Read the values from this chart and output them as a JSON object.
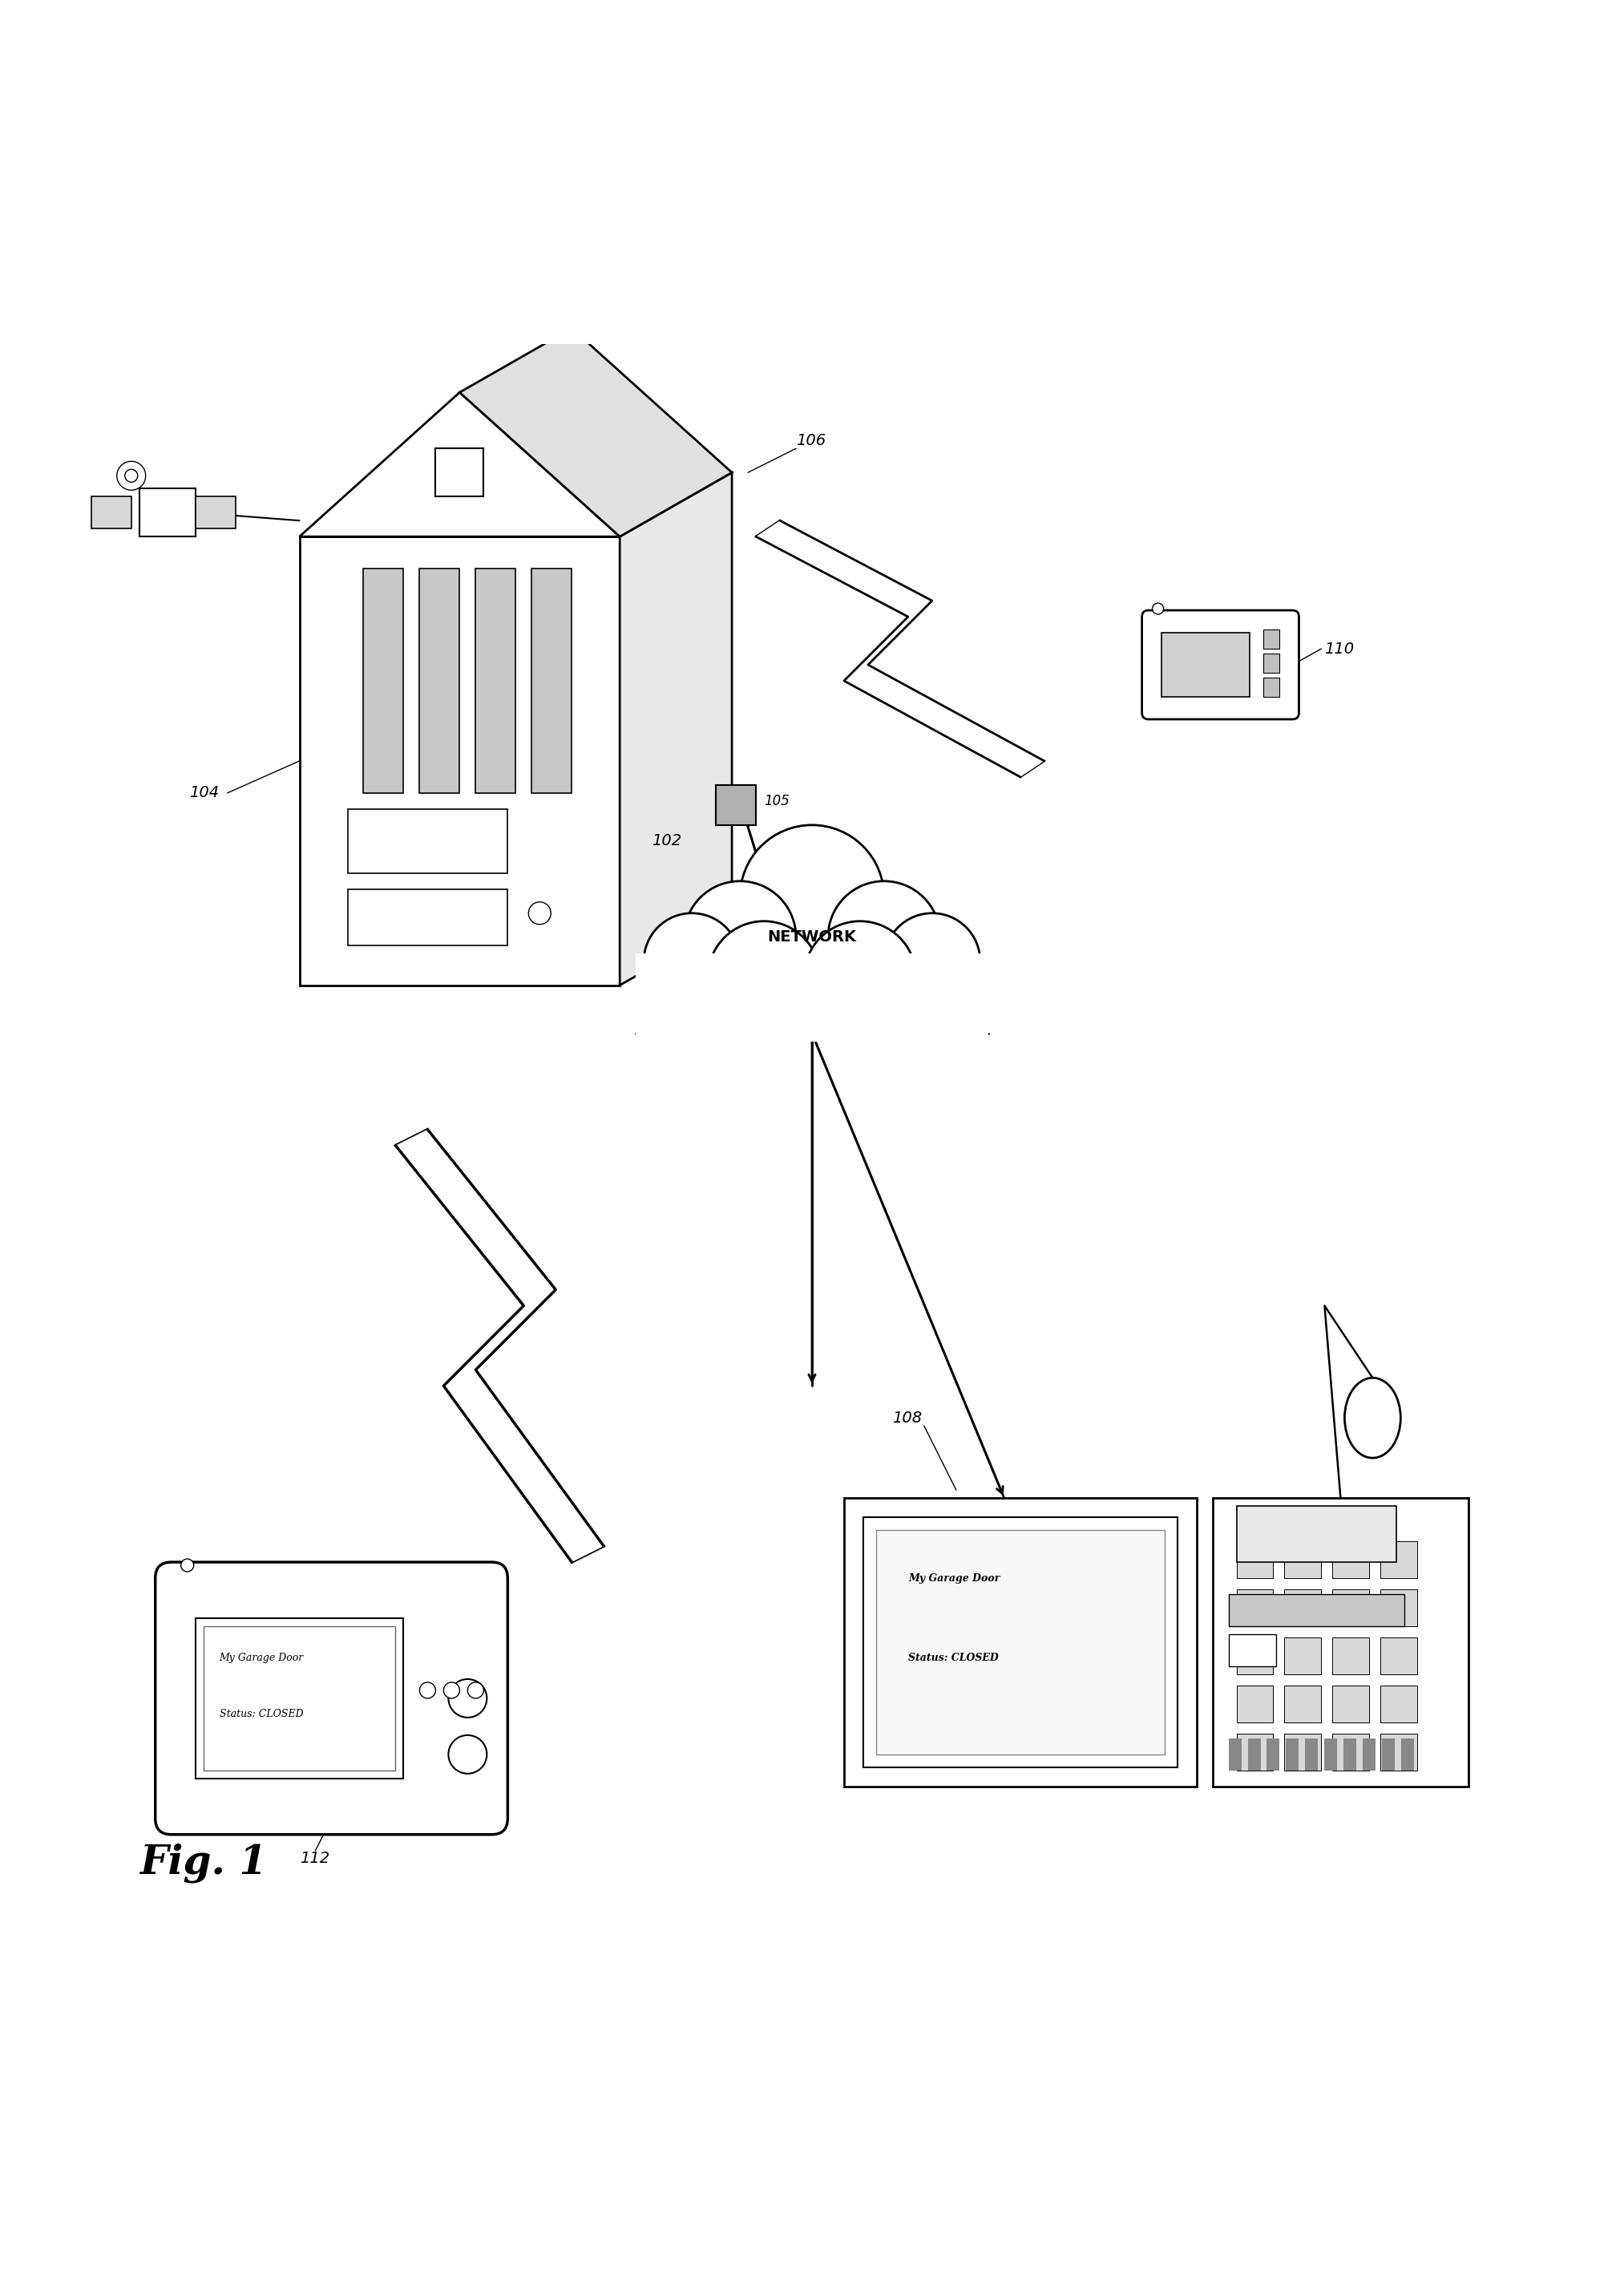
{
  "bg_color": "#ffffff",
  "line_color": "#000000",
  "fig_width": 20.26,
  "fig_height": 28.57,
  "title": "Fig. 1",
  "label_102": "102",
  "label_104": "104",
  "label_105": "105",
  "label_106": "106",
  "label_108": "108",
  "label_110": "110",
  "label_112": "112",
  "network_label": "NETWORK",
  "screen_text1": "My Garage Door",
  "screen_text2": "Status: CLOSED",
  "screen_text1b": "My Garage Door",
  "screen_text2b": "Status: CLOSED"
}
